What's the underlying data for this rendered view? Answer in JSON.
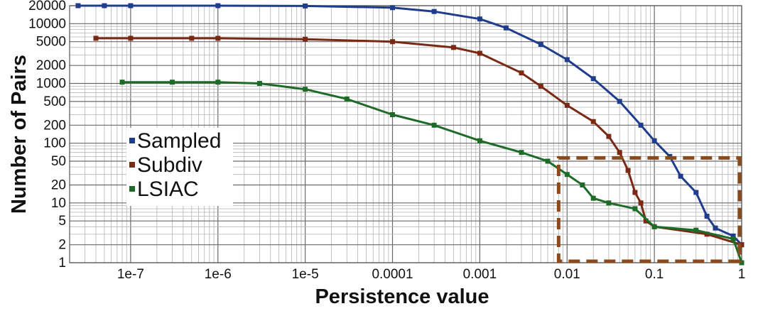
{
  "chart_data": {
    "type": "line",
    "title": "",
    "xlabel": "Persistence value",
    "ylabel": "Number of Pairs",
    "x_scale": "log",
    "y_scale": "log",
    "xlim": [
      2e-08,
      1
    ],
    "ylim": [
      1,
      20000
    ],
    "grid": true,
    "legend_position": "center-left",
    "x_ticks": [
      {
        "value": 1e-07,
        "label": "1e-7"
      },
      {
        "value": 1e-06,
        "label": "1e-6"
      },
      {
        "value": 1e-05,
        "label": "1e-5"
      },
      {
        "value": 0.0001,
        "label": "0.0001"
      },
      {
        "value": 0.001,
        "label": "0.001"
      },
      {
        "value": 0.01,
        "label": "0.01"
      },
      {
        "value": 0.1,
        "label": "0.1"
      },
      {
        "value": 1,
        "label": "1"
      }
    ],
    "y_ticks": [
      {
        "value": 1,
        "label": "1"
      },
      {
        "value": 2,
        "label": "2"
      },
      {
        "value": 5,
        "label": "5"
      },
      {
        "value": 10,
        "label": "10"
      },
      {
        "value": 20,
        "label": "20"
      },
      {
        "value": 50,
        "label": "50"
      },
      {
        "value": 100,
        "label": "100"
      },
      {
        "value": 200,
        "label": "200"
      },
      {
        "value": 500,
        "label": "500"
      },
      {
        "value": 1000,
        "label": "1000"
      },
      {
        "value": 2000,
        "label": "2000"
      },
      {
        "value": 5000,
        "label": "5000"
      },
      {
        "value": 10000,
        "label": "10000"
      },
      {
        "value": 20000,
        "label": "20000"
      }
    ],
    "series": [
      {
        "name": "Sampled",
        "color": "#1f3d8c",
        "points": [
          [
            2.5e-08,
            20000
          ],
          [
            5e-08,
            20000
          ],
          [
            1e-07,
            20000
          ],
          [
            1e-06,
            20000
          ],
          [
            1e-05,
            19800
          ],
          [
            0.0001,
            18500
          ],
          [
            0.0003,
            16000
          ],
          [
            0.001,
            12000
          ],
          [
            0.002,
            8500
          ],
          [
            0.005,
            4500
          ],
          [
            0.01,
            2500
          ],
          [
            0.02,
            1200
          ],
          [
            0.04,
            500
          ],
          [
            0.07,
            200
          ],
          [
            0.1,
            110
          ],
          [
            0.15,
            60
          ],
          [
            0.2,
            28
          ],
          [
            0.3,
            15
          ],
          [
            0.4,
            6
          ],
          [
            0.5,
            3.8
          ],
          [
            0.8,
            2.8
          ],
          [
            1,
            2
          ]
        ]
      },
      {
        "name": "Subdiv",
        "color": "#7a2a14",
        "points": [
          [
            4e-08,
            5700
          ],
          [
            1e-07,
            5700
          ],
          [
            5e-07,
            5700
          ],
          [
            1e-06,
            5700
          ],
          [
            1e-05,
            5500
          ],
          [
            0.0001,
            5000
          ],
          [
            0.0005,
            4000
          ],
          [
            0.001,
            3200
          ],
          [
            0.003,
            1500
          ],
          [
            0.005,
            900
          ],
          [
            0.01,
            430
          ],
          [
            0.02,
            230
          ],
          [
            0.03,
            130
          ],
          [
            0.04,
            70
          ],
          [
            0.05,
            35
          ],
          [
            0.06,
            15
          ],
          [
            0.07,
            10
          ],
          [
            0.08,
            5
          ],
          [
            0.1,
            4
          ],
          [
            0.4,
            3
          ],
          [
            1,
            2
          ]
        ]
      },
      {
        "name": "LSIAC",
        "color": "#1e6b28",
        "points": [
          [
            8e-08,
            1050
          ],
          [
            3e-07,
            1050
          ],
          [
            1e-06,
            1050
          ],
          [
            3e-06,
            1000
          ],
          [
            1e-05,
            800
          ],
          [
            3e-05,
            550
          ],
          [
            0.0001,
            300
          ],
          [
            0.0003,
            200
          ],
          [
            0.001,
            110
          ],
          [
            0.003,
            70
          ],
          [
            0.006,
            50
          ],
          [
            0.01,
            30
          ],
          [
            0.015,
            20
          ],
          [
            0.02,
            12
          ],
          [
            0.03,
            10
          ],
          [
            0.06,
            8
          ],
          [
            0.1,
            4
          ],
          [
            0.3,
            3.5
          ],
          [
            0.8,
            2.5
          ],
          [
            1,
            1
          ]
        ]
      }
    ],
    "annotations": [
      {
        "type": "dashed-box",
        "x_range": [
          0.008,
          1
        ],
        "y_range": [
          1,
          60
        ],
        "color": "#8b4a1c"
      }
    ]
  }
}
